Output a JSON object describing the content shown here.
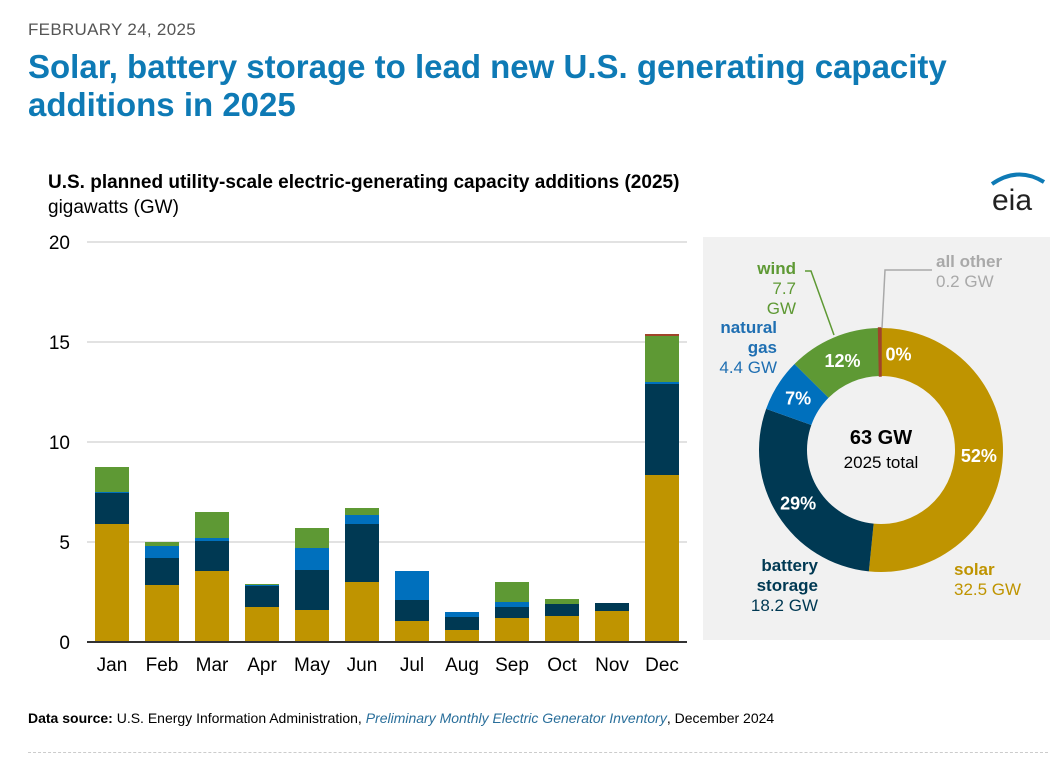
{
  "header": {
    "date": "FEBRUARY 24, 2025",
    "title": "Solar, battery storage to lead new U.S. generating capacity additions in 2025"
  },
  "logo": "eia",
  "source": {
    "label": "Data source:",
    "text1": " U.S. Energy Information Administration, ",
    "link": "Preliminary Monthly Electric Generator Inventory",
    "text2": ", December 2024"
  },
  "chart_data": [
    {
      "type": "bar",
      "stacked": true,
      "title": "U.S. planned utility-scale electric-generating capacity additions (2025)",
      "ylabel": "gigawatts (GW)",
      "ylim": [
        0,
        20
      ],
      "yticks": [
        "0",
        "5",
        "10",
        "15",
        "20"
      ],
      "grid": true,
      "categories": [
        "Jan",
        "Feb",
        "Mar",
        "Apr",
        "May",
        "Jun",
        "Jul",
        "Aug",
        "Sep",
        "Oct",
        "Nov",
        "Dec"
      ],
      "series": [
        {
          "key": "solar",
          "color": "#bf9400",
          "values": [
            5.9,
            2.85,
            3.55,
            1.75,
            1.6,
            3.0,
            1.05,
            0.6,
            1.2,
            1.3,
            1.55,
            8.35
          ]
        },
        {
          "key": "battery",
          "color": "#003953",
          "values": [
            1.55,
            1.35,
            1.5,
            1.05,
            2.0,
            2.9,
            1.05,
            0.65,
            0.55,
            0.6,
            0.4,
            4.55
          ]
        },
        {
          "key": "gas",
          "color": "#0070bd",
          "values": [
            0.05,
            0.6,
            0.15,
            0.05,
            1.1,
            0.45,
            1.45,
            0.25,
            0.25,
            0,
            0,
            0.1
          ]
        },
        {
          "key": "wind",
          "color": "#5e9934",
          "values": [
            1.25,
            0.2,
            1.3,
            0.05,
            1.0,
            0.35,
            0,
            0,
            1.0,
            0.25,
            0,
            2.3
          ]
        },
        {
          "key": "other",
          "color": "#a0442a",
          "values": [
            0,
            0,
            0,
            0,
            0,
            0,
            0,
            0,
            0,
            0,
            0,
            0.1
          ]
        }
      ]
    },
    {
      "type": "pie",
      "donut": true,
      "center_value": "63 GW",
      "center_label": "2025 total",
      "slices": [
        {
          "name": "solar",
          "value": 32.5,
          "value_label": "32.5 GW",
          "pct": "52%",
          "color": "#bf9400",
          "label_color": "#bf9400"
        },
        {
          "name": "battery storage",
          "value": 18.2,
          "value_label": "18.2 GW",
          "pct": "29%",
          "color": "#003953",
          "label_color": "#003953"
        },
        {
          "name": "natural gas",
          "value": 4.4,
          "value_label": "4.4 GW",
          "pct": "7%",
          "color": "#0070bd",
          "label_color": "#1f6fb2"
        },
        {
          "name": "wind",
          "value": 7.7,
          "value_label": "7.7 GW",
          "pct": "12%",
          "color": "#5e9934",
          "label_color": "#5e9934"
        },
        {
          "name": "all other",
          "value": 0.2,
          "value_label": "0.2 GW",
          "pct": "0%",
          "color": "#a0442a",
          "label_color": "#a9a9a9"
        }
      ]
    }
  ]
}
